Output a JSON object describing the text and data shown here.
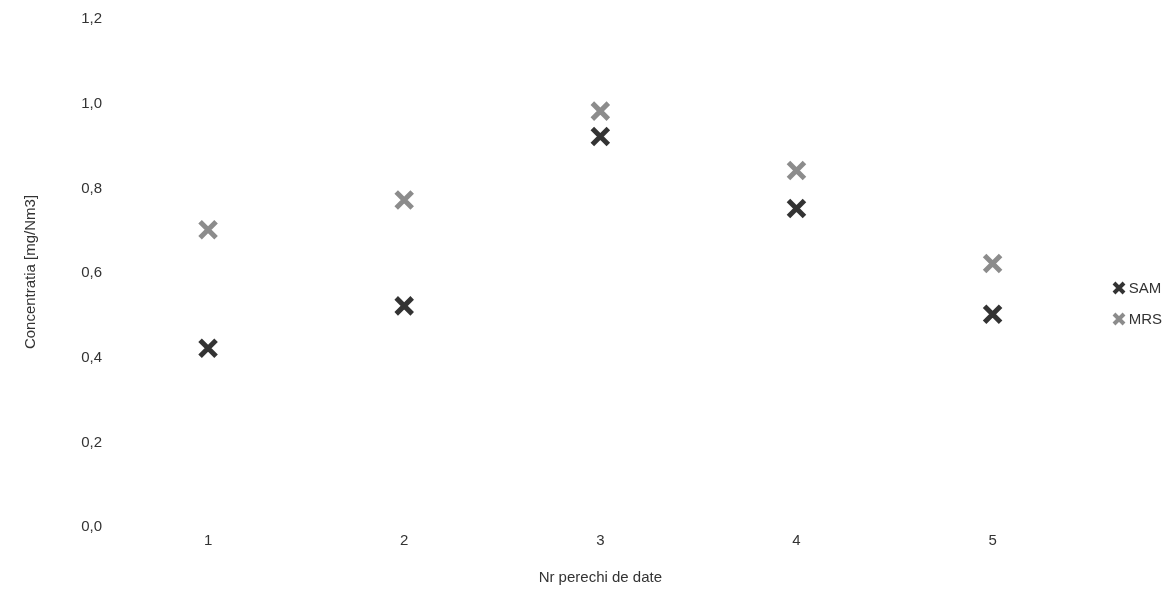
{
  "chart_data": {
    "type": "scatter",
    "xlabel": "Nr perechi de date",
    "ylabel": "Concentratia [mg/Nm3]",
    "categories": [
      "1",
      "2",
      "3",
      "4",
      "5"
    ],
    "series": [
      {
        "name": "SAM",
        "color": "#333333",
        "values": [
          0.42,
          0.52,
          0.92,
          0.75,
          0.5
        ]
      },
      {
        "name": "MRS",
        "color": "#8c8c8c",
        "values": [
          0.7,
          0.77,
          0.98,
          0.84,
          0.62
        ]
      }
    ],
    "ylim": [
      0,
      1.2
    ],
    "yticks": [
      {
        "value": 0,
        "label": "0,0"
      },
      {
        "value": 0.2,
        "label": "0,2"
      },
      {
        "value": 0.4,
        "label": "0,4"
      },
      {
        "value": 0.6,
        "label": "0,6"
      },
      {
        "value": 0.8,
        "label": "0,8"
      },
      {
        "value": 1,
        "label": "1,0"
      },
      {
        "value": 1.2,
        "label": "1,2"
      }
    ],
    "grid": false,
    "legend": "right",
    "marker": "cross"
  }
}
